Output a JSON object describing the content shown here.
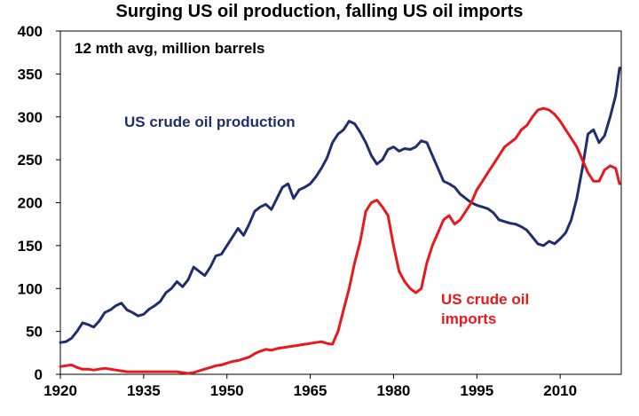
{
  "chart_data": {
    "type": "line",
    "title": "Surging US oil production, falling US oil imports",
    "subtitle": "12 mth avg, million barrels",
    "xlabel": "",
    "ylabel": "",
    "xlim": [
      1920,
      2021
    ],
    "ylim": [
      0,
      400
    ],
    "x_ticks": [
      1920,
      1935,
      1950,
      1965,
      1980,
      1995,
      2010
    ],
    "y_ticks": [
      0,
      50,
      100,
      150,
      200,
      250,
      300,
      350,
      400
    ],
    "grid": false,
    "series": [
      {
        "name": "US crude oil production",
        "color": "#1f2f6e",
        "label_lines": [
          "US crude oil production"
        ],
        "x": [
          1920,
          1921,
          1922,
          1923,
          1924,
          1925,
          1926,
          1927,
          1928,
          1929,
          1930,
          1931,
          1932,
          1933,
          1934,
          1935,
          1936,
          1937,
          1938,
          1939,
          1940,
          1941,
          1942,
          1943,
          1944,
          1945,
          1946,
          1947,
          1948,
          1949,
          1950,
          1951,
          1952,
          1953,
          1954,
          1955,
          1956,
          1957,
          1958,
          1959,
          1960,
          1961,
          1962,
          1963,
          1964,
          1965,
          1966,
          1967,
          1968,
          1969,
          1970,
          1971,
          1972,
          1973,
          1974,
          1975,
          1976,
          1977,
          1978,
          1979,
          1980,
          1981,
          1982,
          1983,
          1984,
          1985,
          1986,
          1987,
          1988,
          1989,
          1990,
          1991,
          1992,
          1993,
          1994,
          1995,
          1996,
          1997,
          1998,
          1999,
          2000,
          2001,
          2002,
          2003,
          2004,
          2005,
          2006,
          2007,
          2008,
          2009,
          2010,
          2011,
          2012,
          2013,
          2014,
          2015,
          2016,
          2017,
          2018,
          2019,
          2020,
          2020.7
        ],
        "values": [
          37,
          38,
          42,
          50,
          60,
          58,
          55,
          62,
          72,
          75,
          80,
          83,
          75,
          72,
          68,
          70,
          76,
          80,
          85,
          95,
          100,
          108,
          102,
          110,
          125,
          120,
          115,
          125,
          138,
          140,
          150,
          160,
          170,
          162,
          175,
          190,
          195,
          198,
          192,
          205,
          218,
          222,
          205,
          215,
          218,
          222,
          230,
          240,
          252,
          270,
          280,
          285,
          295,
          292,
          282,
          270,
          255,
          245,
          250,
          262,
          265,
          260,
          263,
          262,
          265,
          272,
          270,
          255,
          240,
          225,
          222,
          218,
          210,
          205,
          200,
          197,
          195,
          193,
          188,
          180,
          178,
          176,
          175,
          172,
          168,
          160,
          152,
          150,
          155,
          152,
          158,
          165,
          180,
          205,
          240,
          280,
          285,
          270,
          278,
          300,
          325,
          357
        ]
      },
      {
        "name": "US crude oil imports",
        "color": "#e8191c",
        "label_lines": [
          "US crude oil",
          "imports"
        ],
        "x": [
          1920,
          1921,
          1922,
          1923,
          1924,
          1925,
          1926,
          1927,
          1928,
          1929,
          1930,
          1931,
          1932,
          1933,
          1934,
          1935,
          1936,
          1937,
          1938,
          1939,
          1940,
          1941,
          1942,
          1943,
          1944,
          1945,
          1946,
          1947,
          1948,
          1949,
          1950,
          1951,
          1952,
          1953,
          1954,
          1955,
          1956,
          1957,
          1958,
          1959,
          1960,
          1961,
          1962,
          1963,
          1964,
          1965,
          1966,
          1967,
          1968,
          1969,
          1970,
          1971,
          1972,
          1973,
          1974,
          1975,
          1976,
          1977,
          1978,
          1979,
          1980,
          1981,
          1982,
          1983,
          1984,
          1985,
          1986,
          1987,
          1988,
          1989,
          1990,
          1991,
          1992,
          1993,
          1994,
          1995,
          1996,
          1997,
          1998,
          1999,
          2000,
          2001,
          2002,
          2003,
          2004,
          2005,
          2006,
          2007,
          2008,
          2009,
          2010,
          2011,
          2012,
          2013,
          2014,
          2015,
          2016,
          2017,
          2018,
          2019,
          2020,
          2020.7
        ],
        "values": [
          9,
          10,
          11,
          8,
          6,
          6,
          5,
          6,
          7,
          6,
          5,
          4,
          3,
          3,
          3,
          3,
          3,
          3,
          3,
          3,
          3,
          3,
          2,
          1,
          2,
          4,
          6,
          8,
          10,
          11,
          13,
          15,
          16,
          18,
          20,
          24,
          27,
          29,
          28,
          30,
          31,
          32,
          33,
          34,
          35,
          36,
          37,
          38,
          36,
          35,
          50,
          75,
          100,
          130,
          155,
          190,
          200,
          203,
          195,
          185,
          150,
          120,
          108,
          100,
          95,
          100,
          130,
          150,
          165,
          180,
          185,
          175,
          180,
          190,
          200,
          215,
          225,
          235,
          245,
          255,
          265,
          270,
          275,
          285,
          290,
          300,
          308,
          310,
          308,
          303,
          295,
          285,
          275,
          265,
          250,
          235,
          225,
          225,
          238,
          243,
          240,
          222
        ]
      }
    ]
  }
}
